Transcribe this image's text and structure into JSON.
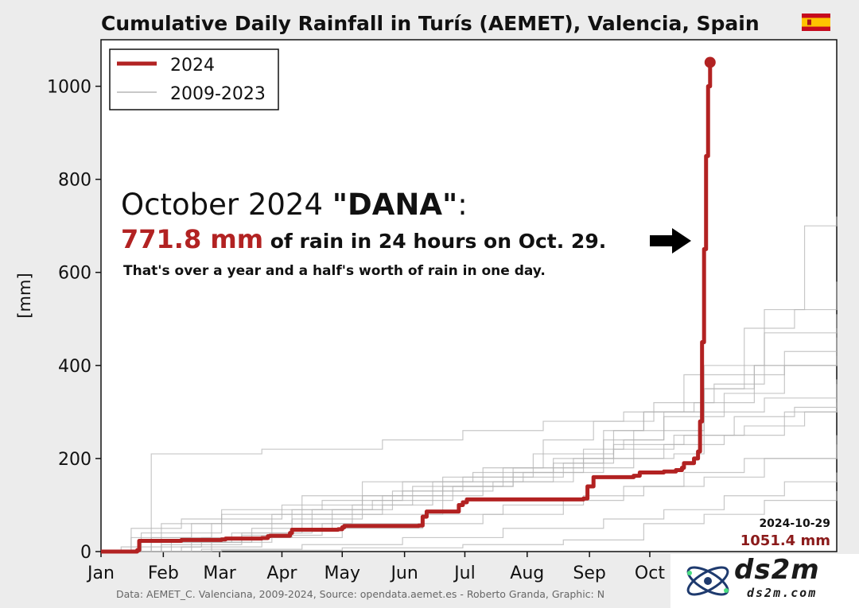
{
  "chart_data": {
    "type": "line",
    "title": "Cumulative Daily Rainfall in Turís (AEMET), Valencia, Spain",
    "title_icon": "spain-flag-icon",
    "ylabel": "[mm]",
    "xlabel": "",
    "x_ticks": [
      "Jan",
      "Feb",
      "Mar",
      "Apr",
      "May",
      "Jun",
      "Jul",
      "Aug",
      "Sep",
      "Oct"
    ],
    "x_tick_days": [
      0,
      31,
      59,
      90,
      120,
      151,
      181,
      212,
      243,
      273
    ],
    "y_ticks": [
      0,
      200,
      400,
      600,
      800,
      1000
    ],
    "xlim": [
      0,
      366
    ],
    "ylim": [
      0,
      1100
    ],
    "grid": false,
    "legend": {
      "placement": "top-left",
      "entries": [
        {
          "label": "2024",
          "color": "#b22222"
        },
        {
          "label": "2009-2023",
          "color": "#c8c8c8"
        }
      ]
    },
    "series_2024": {
      "label": "2024",
      "color": "#b22222",
      "x_day": [
        0,
        18,
        19,
        38,
        40,
        60,
        62,
        80,
        83,
        84,
        92,
        94,
        95,
        118,
        120,
        121,
        158,
        160,
        162,
        176,
        178,
        180,
        182,
        240,
        242,
        245,
        265,
        268,
        280,
        286,
        289,
        290,
        295,
        297,
        298,
        299,
        300,
        301,
        302,
        303
      ],
      "y_mm": [
        0,
        3,
        23,
        23,
        25,
        26,
        28,
        29,
        33,
        34,
        34,
        40,
        47,
        48,
        52,
        55,
        56,
        75,
        86,
        86,
        100,
        106,
        112,
        114,
        140,
        160,
        163,
        170,
        172,
        175,
        180,
        190,
        200,
        215,
        279.6,
        450,
        650,
        850,
        1000,
        1051.4
      ]
    },
    "series_historic": {
      "label": "2009-2023",
      "color": "#c8c8c8",
      "series": [
        {
          "x_day": [
            0,
            20,
            70,
            100,
            170,
            200,
            240,
            260,
            280,
            300,
            320,
            340,
            366
          ],
          "y_mm": [
            0,
            20,
            40,
            80,
            140,
            180,
            220,
            240,
            300,
            350,
            380,
            400,
            430
          ]
        },
        {
          "x_day": [
            0,
            30,
            60,
            110,
            150,
            180,
            230,
            250,
            270,
            290,
            320,
            345,
            366
          ],
          "y_mm": [
            0,
            60,
            90,
            110,
            130,
            160,
            190,
            260,
            300,
            380,
            480,
            520,
            580
          ]
        },
        {
          "x_day": [
            0,
            15,
            40,
            90,
            130,
            190,
            220,
            245,
            275,
            305,
            330,
            350,
            366
          ],
          "y_mm": [
            0,
            50,
            70,
            100,
            150,
            180,
            240,
            280,
            320,
            360,
            520,
            700,
            720
          ]
        },
        {
          "x_day": [
            0,
            25,
            55,
            85,
            140,
            165,
            210,
            250,
            280,
            310,
            340,
            366
          ],
          "y_mm": [
            0,
            30,
            60,
            80,
            100,
            150,
            170,
            200,
            230,
            250,
            300,
            370
          ]
        },
        {
          "x_day": [
            0,
            40,
            80,
            120,
            160,
            190,
            230,
            260,
            290,
            320,
            366
          ],
          "y_mm": [
            0,
            10,
            30,
            50,
            60,
            80,
            110,
            140,
            170,
            200,
            230
          ]
        },
        {
          "x_day": [
            0,
            10,
            50,
            95,
            130,
            170,
            215,
            255,
            270,
            300,
            325,
            366
          ],
          "y_mm": [
            0,
            10,
            30,
            70,
            120,
            160,
            210,
            260,
            300,
            350,
            400,
            420
          ]
        },
        {
          "x_day": [
            0,
            35,
            65,
            105,
            135,
            175,
            205,
            240,
            265,
            300,
            330,
            366
          ],
          "y_mm": [
            0,
            20,
            40,
            90,
            110,
            140,
            170,
            200,
            260,
            300,
            330,
            360
          ]
        },
        {
          "x_day": [
            0,
            20,
            60,
            100,
            150,
            185,
            225,
            255,
            285,
            315,
            345,
            366
          ],
          "y_mm": [
            0,
            40,
            80,
            120,
            150,
            170,
            190,
            220,
            250,
            290,
            310,
            330
          ]
        },
        {
          "x_day": [
            0,
            45,
            75,
            115,
            145,
            195,
            235,
            265,
            285,
            300,
            330,
            366
          ],
          "y_mm": [
            0,
            20,
            50,
            90,
            130,
            150,
            180,
            200,
            210,
            400,
            470,
            510
          ]
        },
        {
          "x_day": [
            0,
            25,
            50,
            80,
            140,
            180,
            220,
            260,
            295,
            325,
            366
          ],
          "y_mm": [
            0,
            210,
            210,
            220,
            240,
            260,
            280,
            300,
            320,
            400,
            460
          ]
        },
        {
          "x_day": [
            0,
            55,
            85,
            125,
            155,
            205,
            235,
            255,
            290,
            320,
            350,
            366
          ],
          "y_mm": [
            0,
            20,
            60,
            100,
            140,
            180,
            200,
            230,
            250,
            270,
            300,
            320
          ]
        },
        {
          "x_day": [
            0,
            30,
            70,
            110,
            160,
            200,
            240,
            270,
            300,
            330,
            366
          ],
          "y_mm": [
            0,
            15,
            35,
            60,
            80,
            100,
            120,
            140,
            160,
            200,
            250
          ]
        },
        {
          "x_day": [
            0,
            50,
            100,
            150,
            200,
            250,
            280,
            310,
            340,
            366
          ],
          "y_mm": [
            0,
            5,
            15,
            30,
            50,
            70,
            90,
            120,
            150,
            170
          ]
        },
        {
          "x_day": [
            0,
            60,
            120,
            180,
            230,
            270,
            300,
            330,
            366
          ],
          "y_mm": [
            0,
            3,
            8,
            15,
            25,
            60,
            80,
            110,
            130
          ]
        },
        {
          "x_day": [
            0,
            15,
            45,
            95,
            140,
            190,
            225,
            250,
            280,
            310,
            340,
            366
          ],
          "y_mm": [
            0,
            30,
            60,
            90,
            120,
            150,
            200,
            240,
            290,
            340,
            430,
            480
          ]
        }
      ]
    },
    "annotation": {
      "line1_pre": "October 2024 ",
      "line1_bold": "\"DANA\"",
      "line1_post": ":",
      "line2_big": "771.8 mm",
      "line2_rest": " of rain in 24 hours on Oct. 29.",
      "line3": "That's over a year and a half's worth of rain in one day.",
      "arrow_icon": "right-arrow-icon"
    },
    "end_label": {
      "date": "2024-10-29",
      "value": "1051.4 mm"
    }
  },
  "source_text": "Data: AEMET_C. Valenciana, 2009-2024, Source: opendata.aemet.es - Roberto Granda, Graphic: N",
  "watermark": {
    "name": "ds2m",
    "sub": "ds2m.com"
  }
}
